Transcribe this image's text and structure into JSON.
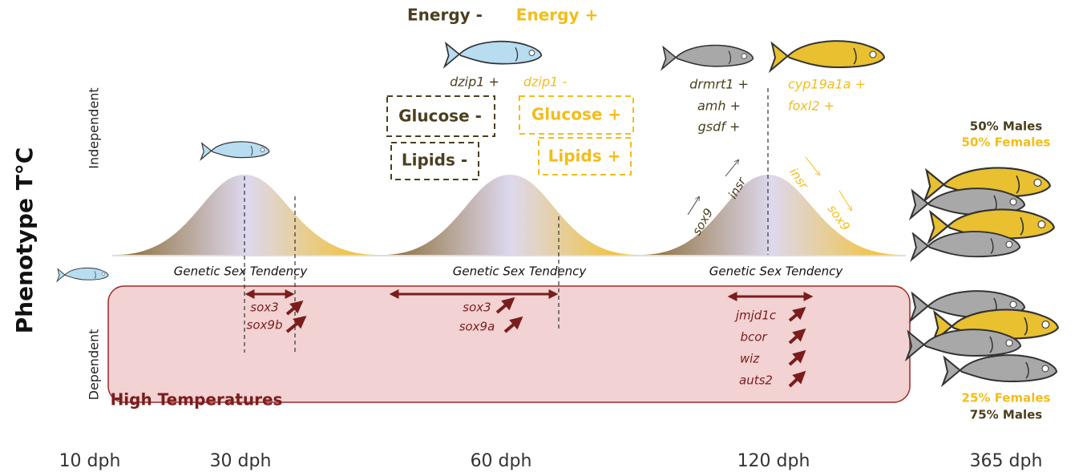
{
  "y_axis": {
    "title": "Phenotype T°C",
    "upper": "Independent",
    "lower": "Dependent"
  },
  "energy": {
    "minus": "Energy -",
    "plus": "Energy +"
  },
  "curves": [
    {
      "label": "Genetic Sex Tendency"
    },
    {
      "label": "Genetic Sex Tendency"
    },
    {
      "label": "Genetic Sex Tendency"
    }
  ],
  "stage60": {
    "minus": [
      "dzip1 +",
      "Glucose -",
      "Lipids -"
    ],
    "plus": [
      "dzip1 -",
      "Glucose +",
      "Lipids +"
    ]
  },
  "stage120": {
    "male_genes": [
      "drmrt1 +",
      "amh +",
      "gsdf +"
    ],
    "female_genes": [
      "cyp19a1a +",
      "foxl2 +"
    ],
    "curve_left": [
      "sox9",
      "insr"
    ],
    "curve_right": [
      "insr",
      "sox9"
    ]
  },
  "high_temp": {
    "label": "High Temperatures",
    "genes_30": [
      "sox3",
      "sox9b"
    ],
    "genes_60": [
      "sox3",
      "sox9a"
    ],
    "genes_120": [
      "jmjd1c",
      "bcor",
      "wiz",
      "auts2"
    ]
  },
  "outcomes": {
    "independent": [
      "50% Males",
      "50% Females"
    ],
    "dependent": [
      "25% Females",
      "75% Males"
    ]
  },
  "timepoints": [
    "10 dph",
    "30 dph",
    "60 dph",
    "120 dph",
    "365 dph"
  ]
}
